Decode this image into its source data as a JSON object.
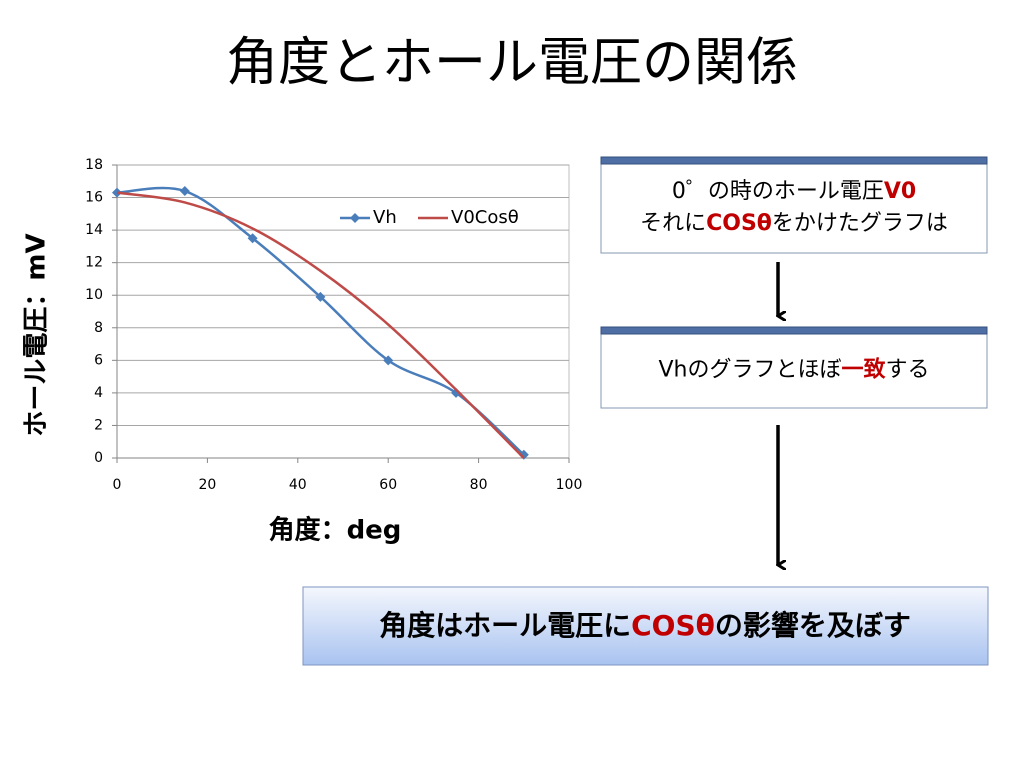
{
  "title": "角度とホール電圧の関係",
  "chart_data": {
    "type": "line",
    "x_label": "角度：deg",
    "y_label": "ホール電圧：mV",
    "x": [
      0,
      15,
      30,
      45,
      60,
      75,
      90
    ],
    "series": [
      {
        "name": "Vh",
        "color": "#4a7ebb",
        "marker": "diamond",
        "values": [
          16.3,
          16.4,
          13.5,
          9.9,
          6.0,
          4.0,
          0.2
        ]
      },
      {
        "name": "V0Cosθ",
        "color": "#be4b48",
        "values": [
          16.3,
          15.7,
          14.1,
          11.5,
          8.2,
          4.2,
          0
        ]
      }
    ],
    "xlim": [
      0,
      100
    ],
    "xticks": [
      0,
      20,
      40,
      60,
      80,
      100
    ],
    "ylim": [
      0,
      18
    ],
    "yticks": [
      0,
      2,
      4,
      6,
      8,
      10,
      12,
      14,
      16,
      18
    ],
    "grid": true,
    "legend": "top"
  },
  "boxes": [
    {
      "lines": [
        [
          {
            "text": "0゜の時のホール電圧"
          },
          {
            "text": "V0",
            "color": "#c00000"
          }
        ],
        [
          {
            "text": "それに"
          },
          {
            "text": "COSθ",
            "color": "#c00000"
          },
          {
            "text": "をかけたグラフは"
          }
        ]
      ]
    },
    {
      "lines": [
        [
          {
            "text": "Vhのグラフとほぼ"
          },
          {
            "text": "一致",
            "color": "#c00000"
          },
          {
            "text": "する"
          }
        ]
      ]
    }
  ],
  "conclusion": [
    {
      "text": "角度はホール電圧に"
    },
    {
      "text": "COSθ",
      "color": "#c00000"
    },
    {
      "text": "の影響を及ぼす"
    }
  ]
}
